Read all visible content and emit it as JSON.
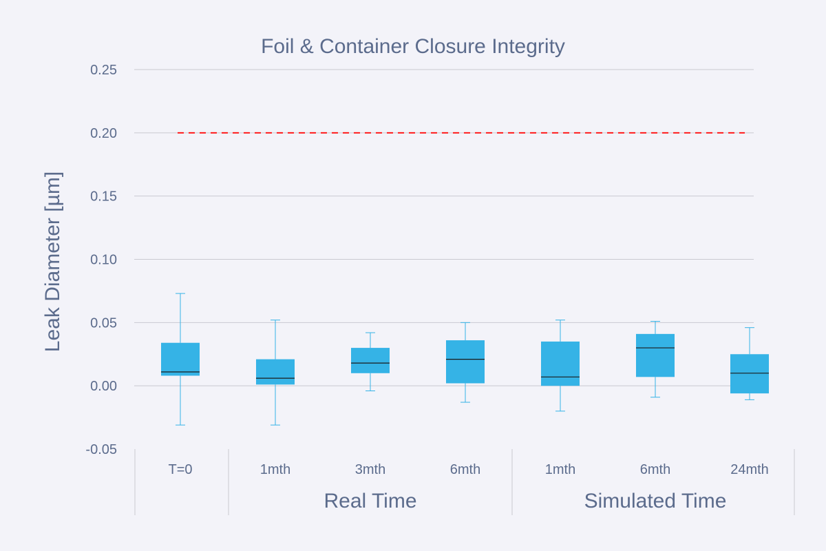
{
  "chart_data": {
    "type": "box",
    "title": "Foil & Container Closure Integrity",
    "xlabel": "",
    "ylabel": "Leak Diameter [µm]",
    "ylim": [
      -0.05,
      0.25
    ],
    "yticks": [
      {
        "value": 0.25,
        "label": "0.25"
      },
      {
        "value": 0.2,
        "label": "0.20"
      },
      {
        "value": 0.15,
        "label": "0.15"
      },
      {
        "value": 0.1,
        "label": "0.10"
      },
      {
        "value": 0.05,
        "label": "0.05"
      },
      {
        "value": 0.0,
        "label": "0.00"
      },
      {
        "value": -0.05,
        "label": "-0.05"
      }
    ],
    "grid": true,
    "legend": "none",
    "reference_line": {
      "value": 0.2,
      "style": "dashed",
      "color": "#ff1a1a"
    },
    "categories": [
      "T=0",
      "1mth",
      "3mth",
      "6mth",
      "1mth",
      "6mth",
      "24mth"
    ],
    "groups": [
      {
        "label": "",
        "categories": [
          "T=0"
        ]
      },
      {
        "label": "Real Time",
        "categories": [
          "1mth",
          "3mth",
          "6mth"
        ]
      },
      {
        "label": "Simulated Time",
        "categories": [
          "1mth",
          "6mth",
          "24mth"
        ]
      }
    ],
    "boxes": [
      {
        "category": "T=0",
        "min": -0.031,
        "q1": 0.008,
        "median": 0.011,
        "q3": 0.034,
        "max": 0.073
      },
      {
        "category": "1mth",
        "min": -0.031,
        "q1": 0.001,
        "median": 0.006,
        "q3": 0.021,
        "max": 0.052
      },
      {
        "category": "3mth",
        "min": -0.004,
        "q1": 0.01,
        "median": 0.018,
        "q3": 0.03,
        "max": 0.042
      },
      {
        "category": "6mth",
        "min": -0.013,
        "q1": 0.002,
        "median": 0.021,
        "q3": 0.036,
        "max": 0.05
      },
      {
        "category": "1mth",
        "min": -0.02,
        "q1": 0.0,
        "median": 0.007,
        "q3": 0.035,
        "max": 0.052
      },
      {
        "category": "6mth",
        "min": -0.009,
        "q1": 0.007,
        "median": 0.03,
        "q3": 0.041,
        "max": 0.051
      },
      {
        "category": "24mth",
        "min": -0.011,
        "q1": -0.006,
        "median": 0.01,
        "q3": 0.025,
        "max": 0.046
      }
    ],
    "colors": {
      "box_fill": "#35b3e6",
      "whisker": "#35b3e6",
      "median": "#1a1a1a",
      "grid": "#c8c8d0",
      "text": "#5b6b8c",
      "background": "#f3f3f9"
    }
  }
}
